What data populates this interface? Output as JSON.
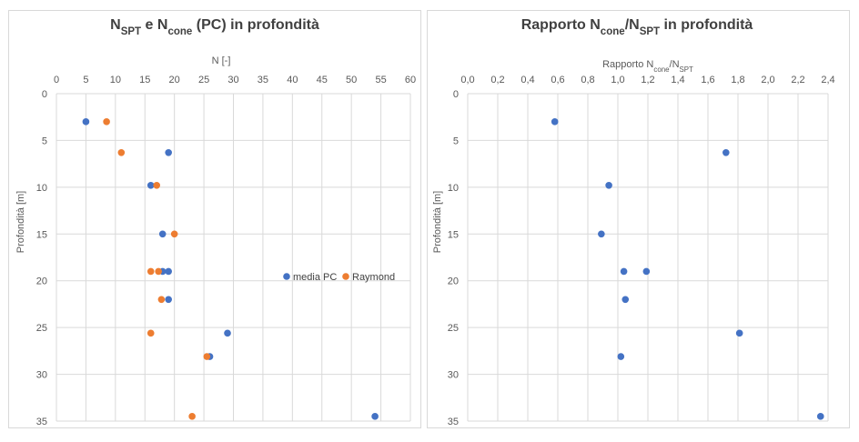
{
  "colors": {
    "media_pc": "#4472C4",
    "raymond": "#ED7D31",
    "grid": "#d9d9d9",
    "text": "#595959"
  },
  "chart_data": [
    {
      "type": "scatter",
      "title_parts": [
        "N",
        "SPT",
        " e N",
        "cone",
        "  (PC) in profondità"
      ],
      "xlabel": "N [-]",
      "ylabel": "Profondità [m]",
      "x_axis_position": "top",
      "y_reversed": true,
      "xlim": [
        0,
        60
      ],
      "ylim": [
        0,
        35
      ],
      "x_ticks": [
        0,
        5,
        10,
        15,
        20,
        25,
        30,
        35,
        40,
        45,
        50,
        55,
        60
      ],
      "y_ticks": [
        0,
        5,
        10,
        15,
        20,
        25,
        30,
        35
      ],
      "grid": true,
      "legend_position": "right",
      "series": [
        {
          "name": "media PC",
          "color": "#4472C4",
          "points": [
            [
              5,
              3
            ],
            [
              19,
              6.3
            ],
            [
              16,
              9.8
            ],
            [
              18,
              15
            ],
            [
              18,
              19
            ],
            [
              19,
              19
            ],
            [
              19,
              22
            ],
            [
              29,
              25.6
            ],
            [
              26,
              28.1
            ],
            [
              54,
              34.5
            ]
          ]
        },
        {
          "name": "Raymond",
          "color": "#ED7D31",
          "points": [
            [
              8.5,
              3
            ],
            [
              11,
              6.3
            ],
            [
              17,
              9.8
            ],
            [
              20,
              15
            ],
            [
              16,
              19
            ],
            [
              17.3,
              19
            ],
            [
              17.8,
              22
            ],
            [
              16,
              25.6
            ],
            [
              25.5,
              28.1
            ],
            [
              23,
              34.5
            ]
          ]
        }
      ]
    },
    {
      "type": "scatter",
      "title_parts": [
        "Rapporto N",
        "cone",
        "/N",
        "SPT",
        " in profondità"
      ],
      "xlabel_parts": [
        "Rapporto N",
        "cone",
        "/N",
        "SPT"
      ],
      "ylabel": "Profondità [m]",
      "x_axis_position": "top",
      "y_reversed": true,
      "xlim": [
        0,
        2.4
      ],
      "ylim": [
        0,
        35
      ],
      "x_ticks": [
        "0,0",
        "0,2",
        "0,4",
        "0,6",
        "0,8",
        "1,0",
        "1,2",
        "1,4",
        "1,6",
        "1,8",
        "2,0",
        "2,2",
        "2,4"
      ],
      "y_ticks": [
        0,
        5,
        10,
        15,
        20,
        25,
        30,
        35
      ],
      "grid": true,
      "series": [
        {
          "color": "#4472C4",
          "points": [
            [
              0.58,
              3
            ],
            [
              1.72,
              6.3
            ],
            [
              0.94,
              9.8
            ],
            [
              0.89,
              15
            ],
            [
              1.04,
              19
            ],
            [
              1.19,
              19
            ],
            [
              1.05,
              22
            ],
            [
              1.81,
              25.6
            ],
            [
              1.02,
              28.1
            ],
            [
              2.35,
              34.5
            ]
          ]
        }
      ]
    }
  ]
}
